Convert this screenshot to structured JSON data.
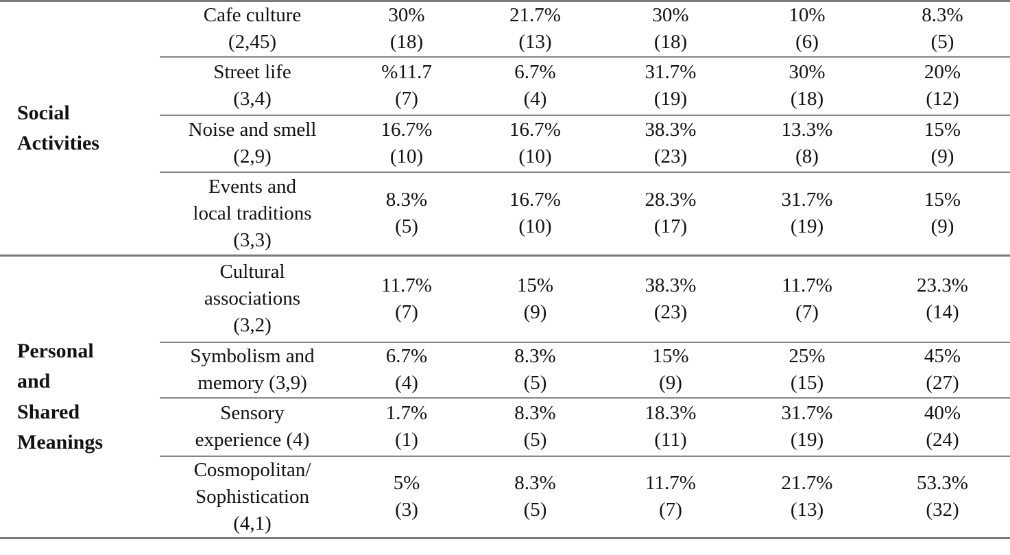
{
  "table": {
    "description_colors": {
      "border_outer": "#7a7a7a",
      "border_inner": "#868686",
      "text": "#111111",
      "background": "#ffffff"
    },
    "groups": [
      {
        "category": "Social\nActivities",
        "rows": [
          {
            "label": "Cafe culture\n(2,45)",
            "cells": [
              [
                "30%",
                "(18)"
              ],
              [
                "21.7%",
                "(13)"
              ],
              [
                "30%",
                "(18)"
              ],
              [
                "10%",
                "(6)"
              ],
              [
                "8.3%",
                "(5)"
              ]
            ]
          },
          {
            "label": "Street life\n(3,4)",
            "cells": [
              [
                "%11.7",
                "(7)"
              ],
              [
                "6.7%",
                "(4)"
              ],
              [
                "31.7%",
                "(19)"
              ],
              [
                "30%",
                "(18)"
              ],
              [
                "20%",
                "(12)"
              ]
            ]
          },
          {
            "label": "Noise and smell\n(2,9)",
            "cells": [
              [
                "16.7%",
                "(10)"
              ],
              [
                "16.7%",
                "(10)"
              ],
              [
                "38.3%",
                "(23)"
              ],
              [
                "13.3%",
                "(8)"
              ],
              [
                "15%",
                "(9)"
              ]
            ]
          },
          {
            "label": "Events and\nlocal traditions\n(3,3)",
            "cells": [
              [
                "8.3%",
                "(5)"
              ],
              [
                "16.7%",
                "(10)"
              ],
              [
                "28.3%",
                "(17)"
              ],
              [
                "31.7%",
                "(19)"
              ],
              [
                "15%",
                "(9)"
              ]
            ]
          }
        ]
      },
      {
        "category": "Personal\nand\nShared\nMeanings",
        "rows": [
          {
            "label": "Cultural\nassociations\n(3,2)",
            "cells": [
              [
                "11.7%",
                "(7)"
              ],
              [
                "15%",
                "(9)"
              ],
              [
                "38.3%",
                "(23)"
              ],
              [
                "11.7%",
                "(7)"
              ],
              [
                "23.3%",
                "(14)"
              ]
            ]
          },
          {
            "label": "Symbolism and\nmemory (3,9)",
            "cells": [
              [
                "6.7%",
                "(4)"
              ],
              [
                "8.3%",
                "(5)"
              ],
              [
                "15%",
                "(9)"
              ],
              [
                "25%",
                "(15)"
              ],
              [
                "45%",
                "(27)"
              ]
            ]
          },
          {
            "label": "Sensory\nexperience (4)",
            "cells": [
              [
                "1.7%",
                "(1)"
              ],
              [
                "8.3%",
                "(5)"
              ],
              [
                "18.3%",
                "(11)"
              ],
              [
                "31.7%",
                "(19)"
              ],
              [
                "40%",
                "(24)"
              ]
            ]
          },
          {
            "label": "Cosmopolitan/\nSophistication\n(4,1)",
            "cells": [
              [
                "5%",
                "(3)"
              ],
              [
                "8.3%",
                "(5)"
              ],
              [
                "11.7%",
                "(7)"
              ],
              [
                "21.7%",
                "(13)"
              ],
              [
                "53.3%",
                "(32)"
              ]
            ]
          }
        ]
      }
    ]
  }
}
